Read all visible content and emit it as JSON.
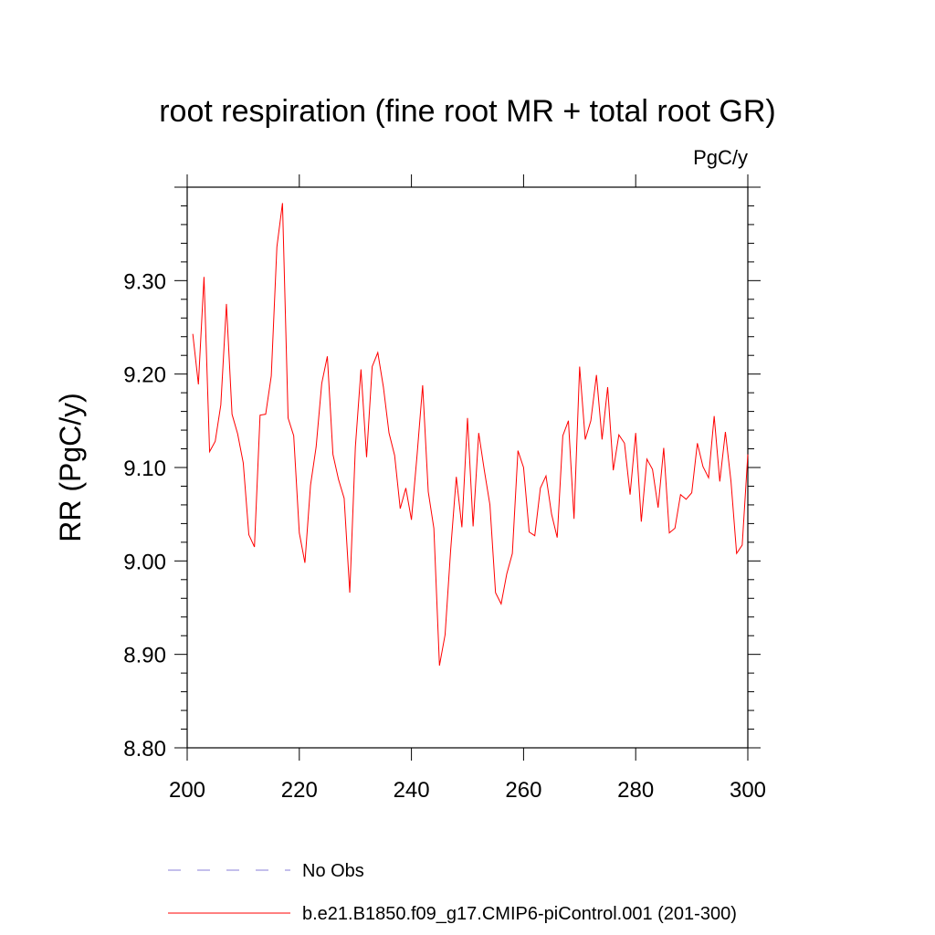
{
  "chart_data": {
    "type": "line",
    "title": "root respiration (fine root MR + total root GR)",
    "units": "PgC/y",
    "xlabel": "",
    "ylabel": "RR  (PgC/y)",
    "xlim": [
      200,
      300
    ],
    "ylim": [
      8.8,
      9.4
    ],
    "x_ticks": [
      200,
      220,
      240,
      260,
      280,
      300
    ],
    "x_tick_labels": [
      "200",
      "220",
      "240",
      "260",
      "280",
      "300"
    ],
    "y_ticks": [
      8.8,
      8.9,
      9.0,
      9.1,
      9.2,
      9.3
    ],
    "y_tick_labels": [
      "8.80",
      "8.90",
      "9.00",
      "9.10",
      "9.20",
      "9.30"
    ],
    "grid": false,
    "legend_position": "bottom",
    "legend": [
      {
        "label": "No Obs",
        "color": "#8a7fd8",
        "style": "dashed"
      },
      {
        "label": "b.e21.B1850.f09_g17.CMIP6-piControl.001 (201-300)",
        "color": "#ff0000",
        "style": "solid"
      }
    ],
    "series": [
      {
        "name": "b.e21.B1850.f09_g17.CMIP6-piControl.001 (201-300)",
        "color": "#ff0000",
        "x": [
          201,
          202,
          203,
          204,
          205,
          206,
          207,
          208,
          209,
          210,
          211,
          212,
          213,
          214,
          215,
          216,
          217,
          218,
          219,
          220,
          221,
          222,
          223,
          224,
          225,
          226,
          227,
          228,
          229,
          230,
          231,
          232,
          233,
          234,
          235,
          236,
          237,
          238,
          239,
          240,
          241,
          242,
          243,
          244,
          245,
          246,
          247,
          248,
          249,
          250,
          251,
          252,
          253,
          254,
          255,
          256,
          257,
          258,
          259,
          260,
          261,
          262,
          263,
          264,
          265,
          266,
          267,
          268,
          269,
          270,
          271,
          272,
          273,
          274,
          275,
          276,
          277,
          278,
          279,
          280,
          281,
          282,
          283,
          284,
          285,
          286,
          287,
          288,
          289,
          290,
          291,
          292,
          293,
          294,
          295,
          296,
          297,
          298,
          299,
          300
        ],
        "values": [
          9.243,
          9.189,
          9.304,
          9.117,
          9.128,
          9.167,
          9.275,
          9.157,
          9.136,
          9.105,
          9.028,
          9.015,
          9.156,
          9.157,
          9.198,
          9.336,
          9.383,
          9.153,
          9.134,
          9.03,
          8.998,
          9.081,
          9.122,
          9.19,
          9.219,
          9.114,
          9.087,
          9.067,
          8.966,
          9.122,
          9.205,
          9.111,
          9.208,
          9.223,
          9.186,
          9.137,
          9.113,
          9.056,
          9.078,
          9.044,
          9.113,
          9.188,
          9.074,
          9.035,
          8.888,
          8.921,
          9.012,
          9.09,
          9.036,
          9.153,
          9.037,
          9.137,
          9.097,
          9.06,
          8.966,
          8.954,
          8.986,
          9.008,
          9.118,
          9.1,
          9.031,
          9.027,
          9.078,
          9.091,
          9.05,
          9.025,
          9.134,
          9.15,
          9.045,
          9.208,
          9.13,
          9.15,
          9.199,
          9.13,
          9.186,
          9.097,
          9.135,
          9.126,
          9.071,
          9.137,
          9.042,
          9.109,
          9.098,
          9.057,
          9.121,
          9.03,
          9.035,
          9.071,
          9.066,
          9.073,
          9.126,
          9.101,
          9.089,
          9.155,
          9.085,
          9.138,
          9.085,
          9.008,
          9.017,
          9.114
        ]
      }
    ]
  }
}
